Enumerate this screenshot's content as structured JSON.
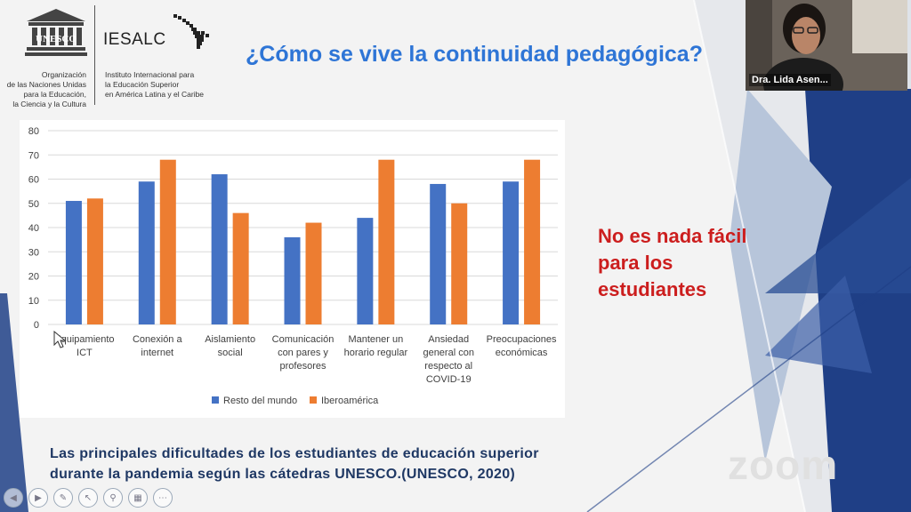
{
  "logos": {
    "unesco_word": "UNESCO",
    "unesco_org": [
      "Organización",
      "de las Naciones Unidas",
      "para la Educación,",
      "la Ciencia y la Cultura"
    ],
    "iesalc_word": "IESALC",
    "iesalc_org": [
      "Instituto Internacional para",
      "la Educación Superior",
      "en América Latina y el Caribe"
    ]
  },
  "slide": {
    "title": "¿Cómo se vive la continuidad pedagógica?",
    "side_message": "No es nada fácil para los estudiantes",
    "caption_line1": "Las principales dificultades de los estudiantes de educación superior",
    "caption_line2": "durante la pandemia según las cátedras UNESCO.(UNESCO, 2020)"
  },
  "video": {
    "participant_name": "Dra. Lida Asen..."
  },
  "zoom_watermark": "zoom",
  "toolbar": {
    "icons": [
      "prev-icon",
      "next-icon",
      "pen-icon",
      "pointer-icon",
      "zoom-icon",
      "slides-icon",
      "more-icon"
    ]
  },
  "colors": {
    "series1": "#4472c4",
    "series2": "#ed7d31",
    "title": "#2e75d6",
    "side_message": "#cc1e1e",
    "caption": "#1f3864",
    "deco_blue": "#1f3f86"
  },
  "chart_data": {
    "type": "bar",
    "categories": [
      [
        "Equipamiento",
        "ICT"
      ],
      [
        "Conexión a",
        "internet"
      ],
      [
        "Aislamiento",
        "social"
      ],
      [
        "Comunicación",
        "con pares y",
        "profesores"
      ],
      [
        "Mantener un",
        "horario regular"
      ],
      [
        "Ansiedad",
        "general con",
        "respecto al",
        "COVID-19"
      ],
      [
        "Preocupaciones",
        "económicas"
      ]
    ],
    "series": [
      {
        "name": "Resto del mundo",
        "values": [
          51,
          59,
          62,
          36,
          44,
          58,
          59
        ]
      },
      {
        "name": "Iberoamérica",
        "values": [
          52,
          68,
          46,
          42,
          68,
          50,
          68
        ]
      }
    ],
    "ylim": [
      0,
      80
    ],
    "yticks": [
      0,
      10,
      20,
      30,
      40,
      50,
      60,
      70,
      80
    ],
    "grid": true,
    "legend": "bottom"
  }
}
